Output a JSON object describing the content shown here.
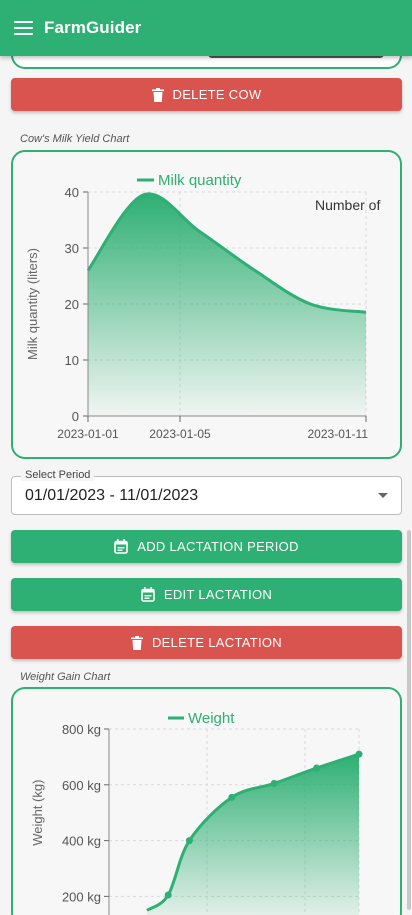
{
  "app": {
    "title": "FarmGuider"
  },
  "buttons": {
    "delete_cow": "DELETE COW",
    "add_lactation": "ADD LACTATION PERIOD",
    "edit_lactation": "EDIT LACTATION",
    "delete_lactation": "DELETE LACTATION"
  },
  "colors": {
    "primary": "#2eaf73",
    "danger": "#d9534f"
  },
  "milk_section": {
    "label": "Cow's Milk Yield Chart"
  },
  "weight_section": {
    "label": "Weight Gain Chart"
  },
  "period_select": {
    "label": "Select Period",
    "value": "01/01/2023 - 11/01/2023"
  },
  "chart_data": [
    {
      "type": "area",
      "series": [
        {
          "name": "Milk quantity",
          "values": [
            26,
            39.5,
            33,
            26,
            20,
            18.5
          ]
        }
      ],
      "x_index": [
        0,
        1,
        2,
        3,
        4,
        5
      ],
      "ylabel": "Milk quantity (liters)",
      "y_ticks": [
        0,
        10,
        20,
        30,
        40
      ],
      "ylim": [
        0,
        40
      ],
      "x_tick_labels": [
        "2023-01-01",
        "2023-01-05",
        "2023-01-11"
      ],
      "annotation": "Number of",
      "grid": true,
      "legend": "top-center"
    },
    {
      "type": "area",
      "series": [
        {
          "name": "Weight",
          "x": [
            0,
            0.5,
            1,
            2,
            3,
            4,
            5
          ],
          "values": [
            150,
            205,
            400,
            555,
            605,
            660,
            710
          ]
        }
      ],
      "ylabel": "Weight (kg)",
      "y_ticks": [
        "200 kg",
        "400 kg",
        "600 kg",
        "800 kg"
      ],
      "y_tick_values": [
        200,
        400,
        600,
        800
      ],
      "ylim": [
        150,
        800
      ],
      "grid": true,
      "legend": "top-center"
    }
  ]
}
